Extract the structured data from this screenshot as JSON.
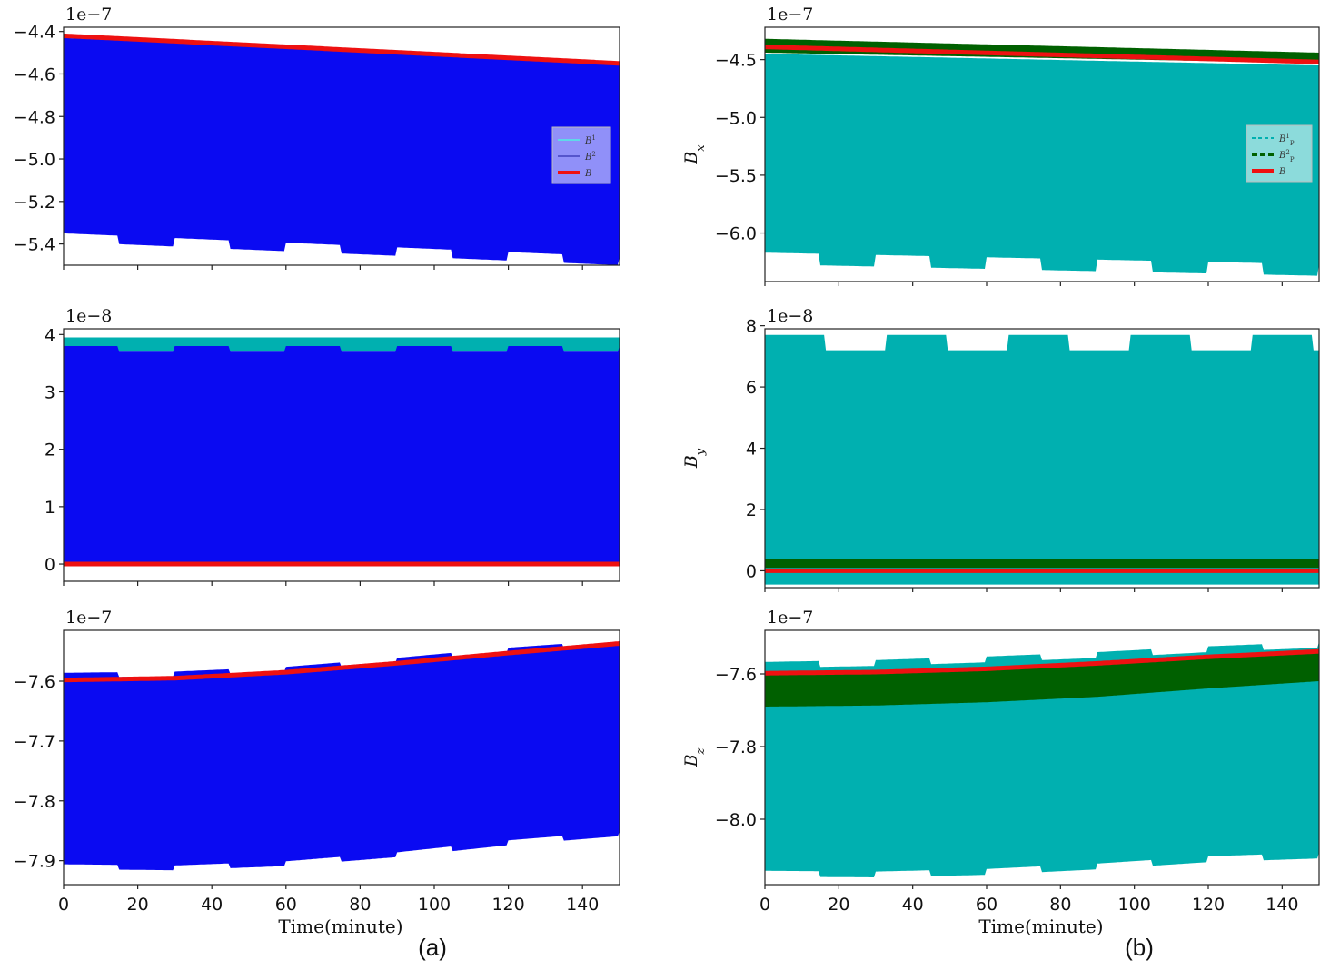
{
  "colors": {
    "blue": "#0a0af2",
    "cyan": "#00b0b0",
    "dark_green": "#006000",
    "red": "#ee1111",
    "light_cyan": "#5fd8e8"
  },
  "panel_labels": [
    "(a)",
    "(b)"
  ],
  "x_axis": {
    "label": "Time(minute)",
    "ticks": [
      "0",
      "20",
      "40",
      "60",
      "80",
      "100",
      "120",
      "140"
    ],
    "range": [
      0,
      150
    ]
  },
  "chart_data": [
    {
      "id": "a-top",
      "type": "area",
      "multiplier": "1e−7",
      "ylabel": "",
      "ylim": [
        -5.5,
        -4.38
      ],
      "yticks": [
        -4.4,
        -4.6,
        -4.8,
        -5.0,
        -5.2,
        -5.4
      ],
      "ytick_labels": [
        "−4.4",
        "−4.6",
        "−4.8",
        "−5.0",
        "−5.2",
        "−5.4"
      ],
      "legend": {
        "entries": [
          "B^1",
          "B^2",
          "B"
        ],
        "styles": [
          "light_cyan",
          "slate",
          "red"
        ]
      },
      "series": [
        {
          "name": "B^2 band",
          "color": "blue",
          "x": [
            0,
            150
          ],
          "upper": [
            -4.43,
            -4.55
          ],
          "lower_start": -5.37,
          "lower_end": -5.48,
          "sq_amp": 0.02,
          "sq_period": 15,
          "sq_side": "lower"
        },
        {
          "name": "B",
          "color": "red",
          "x": [
            0,
            150
          ],
          "y": [
            -4.42,
            -4.55
          ]
        }
      ]
    },
    {
      "id": "a-mid",
      "type": "area",
      "multiplier": "1e−8",
      "ylabel": "",
      "ylim": [
        -0.3,
        4.1
      ],
      "yticks": [
        0,
        1,
        2,
        3,
        4
      ],
      "ytick_labels": [
        "0",
        "1",
        "2",
        "3",
        "4"
      ],
      "series": [
        {
          "name": "B^1 band",
          "color": "cyan",
          "x": [
            0,
            150
          ],
          "upper": [
            3.95,
            3.95
          ],
          "lower": [
            3.7,
            3.7
          ]
        },
        {
          "name": "B^2 band",
          "color": "blue",
          "x": [
            0,
            150
          ],
          "upper": [
            3.75,
            3.75
          ],
          "lower": [
            0.0,
            0.0
          ],
          "sq_amp": 0.05,
          "sq_period": 15,
          "sq_side": "upper"
        },
        {
          "name": "B",
          "color": "red",
          "x": [
            0,
            150
          ],
          "y": [
            0.0,
            0.0
          ]
        }
      ]
    },
    {
      "id": "a-bot",
      "type": "area",
      "multiplier": "1e−7",
      "ylabel": "",
      "ylim": [
        -7.94,
        -7.515
      ],
      "yticks": [
        -7.6,
        -7.7,
        -7.8,
        -7.9
      ],
      "ytick_labels": [
        "−7.6",
        "−7.7",
        "−7.8",
        "−7.9"
      ],
      "series": [
        {
          "name": "B^2 band",
          "color": "blue",
          "x": [
            0,
            30,
            60,
            90,
            120,
            150
          ],
          "upper": [
            -7.59,
            -7.588,
            -7.58,
            -7.565,
            -7.548,
            -7.535
          ],
          "lower": [
            -7.91,
            -7.912,
            -7.905,
            -7.89,
            -7.87,
            -7.855
          ],
          "sq_amp": 0.004,
          "sq_period": 15,
          "sq_side": "both"
        },
        {
          "name": "B",
          "color": "red",
          "x": [
            0,
            30,
            60,
            90,
            120,
            150
          ],
          "y": [
            -7.598,
            -7.595,
            -7.585,
            -7.57,
            -7.553,
            -7.537
          ]
        }
      ]
    },
    {
      "id": "b-top",
      "type": "area",
      "multiplier": "1e−7",
      "ylabel": "B_x",
      "ylim": [
        -6.42,
        -4.22
      ],
      "yticks": [
        -4.5,
        -5.0,
        -5.5,
        -6.0
      ],
      "ytick_labels": [
        "−4.5",
        "−5.0",
        "−5.5",
        "−6.0"
      ],
      "legend": {
        "entries": [
          "B^1_P",
          "B^2_P",
          "B"
        ],
        "styles": [
          "cyan_dashed",
          "dark_green_dashed",
          "red"
        ]
      },
      "series": [
        {
          "name": "B^1_P band",
          "color": "cyan",
          "x": [
            0,
            150
          ],
          "upper": [
            -4.45,
            -4.55
          ],
          "lower_start": -6.22,
          "lower_end": -6.32,
          "sq_amp": 0.05,
          "sq_period": 15,
          "sq_side": "lower"
        },
        {
          "name": "B^2_P band",
          "color": "dark_green",
          "x": [
            0,
            150
          ],
          "upper": [
            -4.32,
            -4.44
          ],
          "lower": [
            -4.44,
            -4.53
          ]
        },
        {
          "name": "B",
          "color": "red",
          "x": [
            0,
            150
          ],
          "y": [
            -4.39,
            -4.52
          ]
        }
      ]
    },
    {
      "id": "b-mid",
      "type": "area",
      "multiplier": "1e−8",
      "ylabel": "B_y",
      "ylim": [
        -0.55,
        7.9
      ],
      "yticks": [
        0,
        2,
        4,
        6,
        8
      ],
      "ytick_labels": [
        "0",
        "2",
        "4",
        "6",
        "8"
      ],
      "series": [
        {
          "name": "B^1_P band",
          "color": "cyan",
          "x": [
            0,
            150
          ],
          "upper": [
            7.45,
            7.45
          ],
          "lower": [
            0.0,
            0.0
          ],
          "sq_amp": 0.25,
          "sq_period": 16.5,
          "sq_side": "upper"
        },
        {
          "name": "B^2_P pulses",
          "color": "dark_green",
          "x": [
            0,
            150
          ],
          "upper": [
            0.4,
            0.4
          ],
          "lower": [
            0.1,
            0.1
          ]
        },
        {
          "name": "B^1_P lower pulses",
          "color": "cyan",
          "x": [
            0,
            150
          ],
          "upper": [
            -0.05,
            -0.05
          ],
          "lower": [
            -0.45,
            -0.45
          ]
        },
        {
          "name": "B",
          "color": "red",
          "x": [
            0,
            150
          ],
          "y": [
            0.0,
            0.0
          ]
        }
      ]
    },
    {
      "id": "b-bot",
      "type": "area",
      "multiplier": "1e−7",
      "ylabel": "B_z",
      "ylim": [
        -8.18,
        -7.48
      ],
      "yticks": [
        -7.6,
        -7.8,
        -8.0
      ],
      "ytick_labels": [
        "−7.6",
        "−7.8",
        "−8.0"
      ],
      "series": [
        {
          "name": "B^1_P band",
          "color": "cyan",
          "x": [
            0,
            30,
            60,
            90,
            120,
            150
          ],
          "upper": [
            -7.575,
            -7.57,
            -7.56,
            -7.548,
            -7.532,
            -7.52
          ],
          "lower": [
            -8.15,
            -8.152,
            -8.145,
            -8.13,
            -8.11,
            -8.1
          ],
          "sq_amp": 0.008,
          "sq_period": 15,
          "sq_side": "both"
        },
        {
          "name": "B^2_P band",
          "color": "dark_green",
          "x": [
            0,
            30,
            60,
            90,
            120,
            150
          ],
          "upper": [
            -7.6,
            -7.597,
            -7.588,
            -7.573,
            -7.555,
            -7.54
          ],
          "lower": [
            -7.69,
            -7.687,
            -7.678,
            -7.663,
            -7.64,
            -7.62
          ]
        },
        {
          "name": "B",
          "color": "red",
          "x": [
            0,
            30,
            60,
            90,
            120,
            150
          ],
          "y": [
            -7.598,
            -7.595,
            -7.586,
            -7.571,
            -7.553,
            -7.538
          ]
        }
      ]
    }
  ]
}
